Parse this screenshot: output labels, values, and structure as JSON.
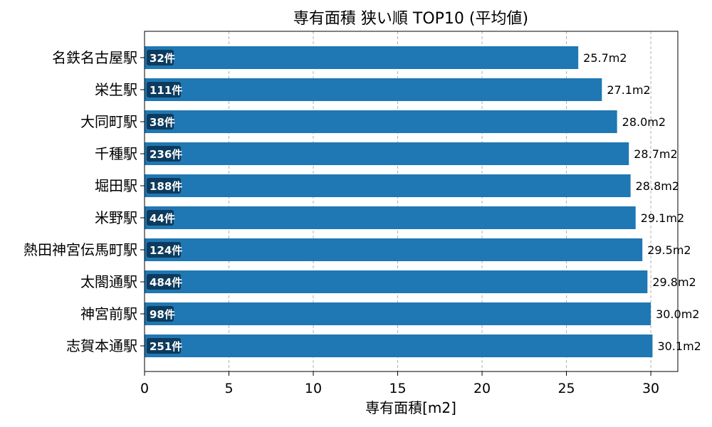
{
  "chart_data": {
    "type": "bar",
    "orientation": "horizontal",
    "title": "専有面積 狭い順 TOP10 (平均値)",
    "xlabel": "専有面積[m2]",
    "ylabel": "",
    "xlim": [
      0,
      31.6
    ],
    "xticks": [
      0,
      5,
      10,
      15,
      20,
      25,
      30
    ],
    "grid": "x-dashed",
    "bar_color": "#1f77b4",
    "count_badge_color": "#0d3b5e",
    "categories": [
      "名鉄名古屋駅",
      "栄生駅",
      "大同町駅",
      "千種駅",
      "堀田駅",
      "米野駅",
      "熱田神宮伝馬町駅",
      "太閤通駅",
      "神宮前駅",
      "志賀本通駅"
    ],
    "values": [
      25.7,
      27.1,
      28.0,
      28.7,
      28.8,
      29.1,
      29.5,
      29.8,
      30.0,
      30.1
    ],
    "value_labels": [
      "25.7m2",
      "27.1m2",
      "28.0m2",
      "28.7m2",
      "28.8m2",
      "29.1m2",
      "29.5m2",
      "29.8m2",
      "30.0m2",
      "30.1m2"
    ],
    "counts": [
      32,
      111,
      38,
      236,
      188,
      44,
      124,
      484,
      98,
      251
    ],
    "count_labels": [
      "32件",
      "111件",
      "38件",
      "236件",
      "188件",
      "44件",
      "124件",
      "484件",
      "98件",
      "251件"
    ]
  }
}
